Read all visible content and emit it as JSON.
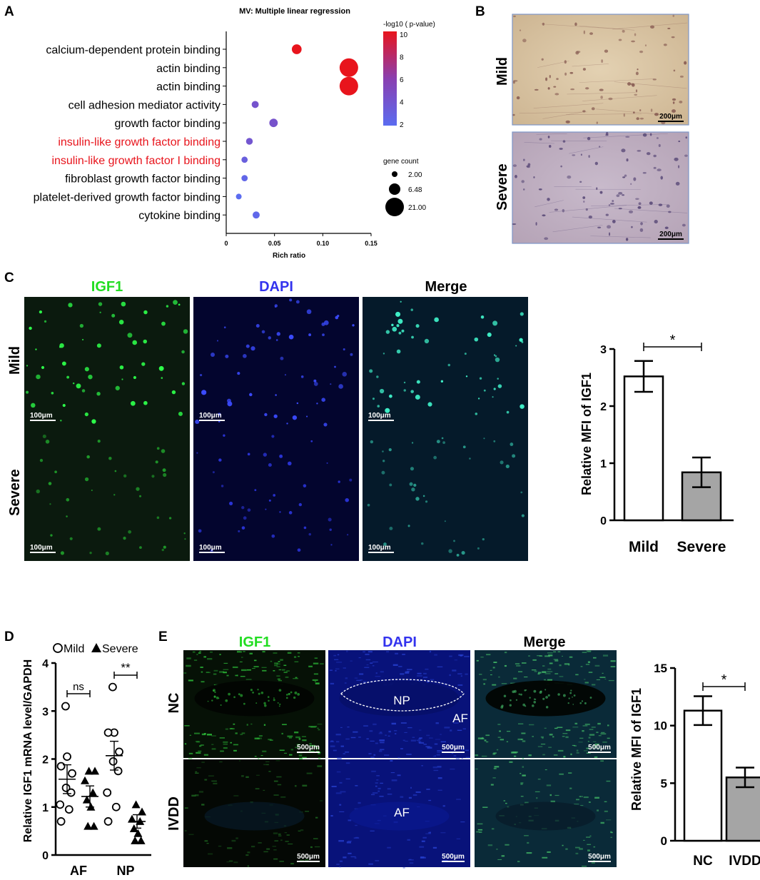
{
  "panel_letters": {
    "a": "A",
    "b": "B",
    "c": "C",
    "d": "D",
    "e": "E"
  },
  "chart_data": [
    {
      "panel": "A",
      "type": "scatter",
      "title": "MV: Multiple linear regression",
      "xlabel": "Rich ratio",
      "ylabel": "",
      "xlim": [
        0,
        0.15
      ],
      "xticks": [
        0,
        0.05,
        0.1,
        0.15
      ],
      "xtick_labels": [
        "0",
        "0.05",
        "0.10",
        "0.15"
      ],
      "categories": [
        "calcium-dependent protein binding",
        "actin binding",
        "actin binding",
        "cell adhesion mediator activity",
        "growth factor binding",
        "insulin-like growth factor binding",
        "insulin-like growth factor I binding",
        "fibroblast growth factor binding",
        "platelet-derived growth factor binding",
        "cytokine binding"
      ],
      "highlighted": [
        false,
        false,
        false,
        false,
        false,
        true,
        true,
        false,
        false,
        false
      ],
      "highlight_color": "#e8141c",
      "x": [
        0.073,
        0.127,
        0.127,
        0.03,
        0.049,
        0.024,
        0.019,
        0.019,
        0.013,
        0.031
      ],
      "neg_log10_p": [
        10,
        10,
        10,
        4.2,
        4.3,
        4.0,
        3.2,
        2.5,
        2.0,
        2.4
      ],
      "gene_count": [
        8,
        21,
        21,
        4,
        6,
        3.5,
        2.8,
        2.8,
        2,
        4
      ],
      "colorbar": {
        "label": "-log10 ( p-value)",
        "ticks": [
          "10",
          "8",
          "6",
          "4",
          "2"
        ],
        "min": 2,
        "max": 10,
        "low_color": "#5b6cf0",
        "high_color": "#e8141c"
      },
      "size_legend": {
        "label": "gene count",
        "values": [
          2.0,
          6.48,
          21.0
        ],
        "labels": [
          "2.00",
          "6.48",
          "21.00"
        ]
      }
    },
    {
      "panel": "C",
      "type": "bar",
      "categories": [
        "Mild",
        "Severe"
      ],
      "values": [
        2.52,
        0.84
      ],
      "errors": [
        0.27,
        0.26
      ],
      "bar_colors": [
        "#ffffff",
        "#a5a5a5"
      ],
      "ylabel": "Relative MFI of IGF1",
      "ylim": [
        0,
        3
      ],
      "yticks": [
        "0",
        "1",
        "2",
        "3"
      ],
      "significance": "*"
    },
    {
      "panel": "D",
      "type": "scatter",
      "ylabel": "Relative IGF1 mRNA level/GAPDH",
      "ylim": [
        0,
        4
      ],
      "yticks": [
        "0",
        "1",
        "2",
        "3",
        "4"
      ],
      "categories": [
        "AF",
        "NP"
      ],
      "legend": [
        {
          "symbol": "circle",
          "label": "Mild"
        },
        {
          "symbol": "triangle",
          "label": "Severe"
        }
      ],
      "series": [
        {
          "name": "Mild",
          "symbol": "circle",
          "AF": [
            3.1,
            2.05,
            1.85,
            1.7,
            1.4,
            1.3,
            1.05,
            0.95,
            0.7
          ],
          "NP": [
            3.5,
            2.55,
            2.55,
            2.15,
            1.95,
            1.75,
            1.3,
            1.0,
            0.7
          ],
          "mean": [
            1.58,
            2.07
          ],
          "sem": [
            0.3,
            0.3
          ]
        },
        {
          "name": "Severe",
          "symbol": "triangle",
          "AF": [
            1.75,
            1.75,
            1.55,
            1.3,
            1.15,
            1.0,
            0.6,
            0.6
          ],
          "NP": [
            1.05,
            0.9,
            0.75,
            0.7,
            0.55,
            0.45,
            0.3,
            0.3
          ],
          "mean": [
            1.22,
            0.7
          ],
          "sem": [
            0.22,
            0.14
          ]
        }
      ],
      "significance": [
        "ns",
        "**"
      ]
    },
    {
      "panel": "E",
      "type": "bar",
      "categories": [
        "NC",
        "IVDD"
      ],
      "values": [
        11.3,
        5.5
      ],
      "errors": [
        1.25,
        0.85
      ],
      "bar_colors": [
        "#ffffff",
        "#a5a5a5"
      ],
      "ylabel": "Relative MFI of IGF1",
      "ylim": [
        0,
        15
      ],
      "yticks": [
        "0",
        "5",
        "10",
        "15"
      ],
      "significance": "*"
    }
  ],
  "panel_b": {
    "rows": [
      "Mild",
      "Severe"
    ],
    "scale_bar": "200μm",
    "tissue_mild": "#dcc7a6",
    "tissue_severe": "#c1b2c4"
  },
  "panel_c": {
    "columns": [
      "IGF1",
      "DAPI",
      "Merge"
    ],
    "rows": [
      "Mild",
      "Severe"
    ],
    "scale_bar": "100μm",
    "column_colors": [
      "#22dd22",
      "#3333ee",
      "#111111"
    ]
  },
  "panel_e": {
    "columns": [
      "IGF1",
      "DAPI",
      "Merge"
    ],
    "rows": [
      "NC",
      "IVDD"
    ],
    "scale_bar": "500μm",
    "annotation_np": "NP",
    "annotation_af": "AF",
    "column_colors": [
      "#22dd22",
      "#3333ee",
      "#111111"
    ]
  }
}
